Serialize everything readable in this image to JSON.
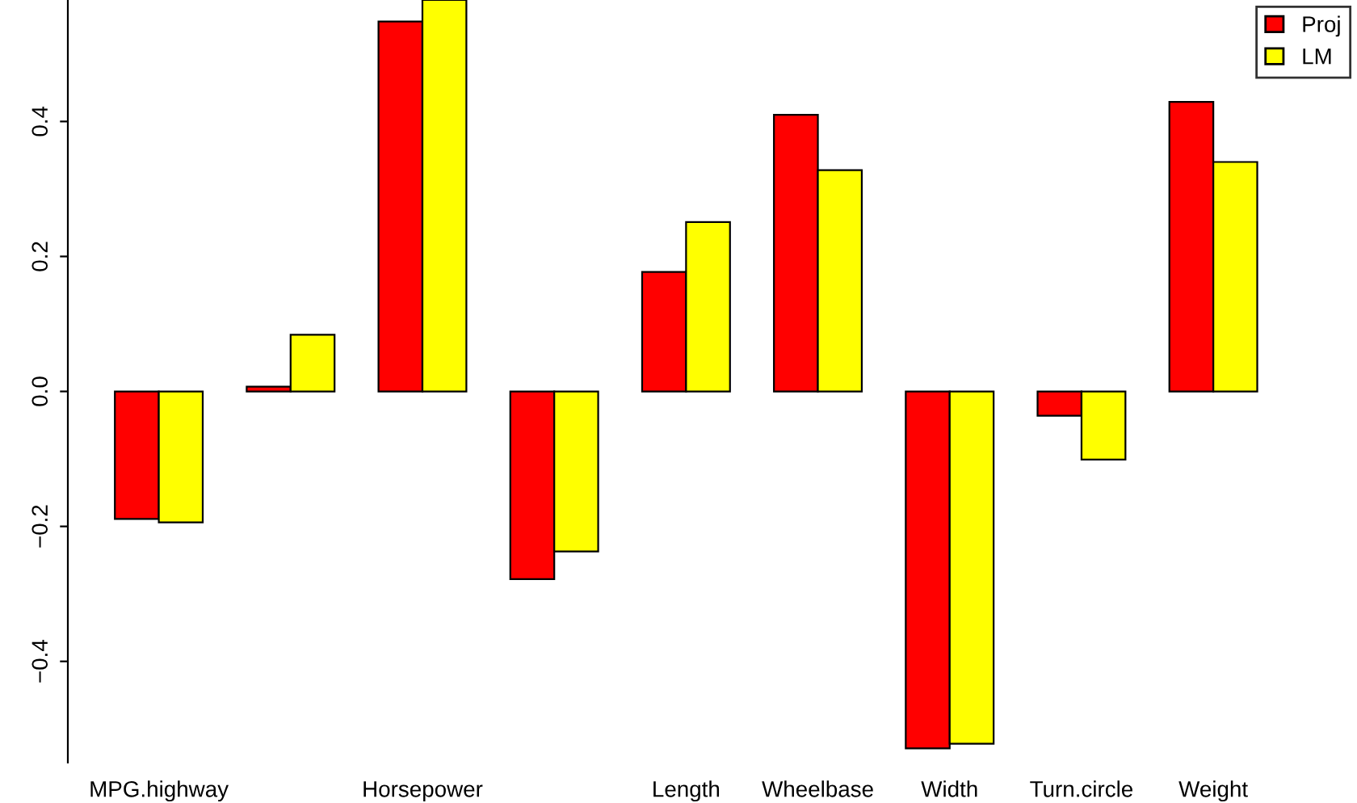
{
  "chart_data": {
    "type": "bar",
    "categories": [
      "MPG.highway",
      null,
      "Horsepower",
      null,
      "Length",
      "Wheelbase",
      "Width",
      "Turn.circle",
      "Weight"
    ],
    "series": [
      {
        "name": "Proj",
        "color": "#ff0000",
        "values": [
          -0.189,
          0.007,
          0.548,
          -0.278,
          0.177,
          0.41,
          -0.529,
          -0.036,
          0.429
        ]
      },
      {
        "name": "LM",
        "color": "#ffff00",
        "values": [
          -0.194,
          0.084,
          0.58,
          -0.237,
          0.251,
          0.328,
          -0.522,
          -0.101,
          0.34
        ]
      }
    ],
    "ylim": [
      -0.55,
      0.58
    ],
    "yticks": [
      {
        "value": -0.4,
        "label": "−0.4"
      },
      {
        "value": -0.2,
        "label": "−0.2"
      },
      {
        "value": 0.0,
        "label": "0.0"
      },
      {
        "value": 0.2,
        "label": "0.2"
      },
      {
        "value": 0.4,
        "label": "0.4"
      }
    ],
    "grid": false,
    "legend": "top right"
  }
}
